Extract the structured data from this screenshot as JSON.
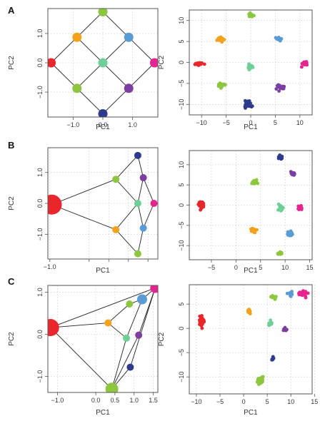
{
  "colors": {
    "red": "#e8262b",
    "orange": "#f4a21e",
    "lime": "#8dc63f",
    "teal": "#6fcf97",
    "blue": "#5b9bd5",
    "purple": "#7a3fa0",
    "navy": "#2e3a8c",
    "magenta": "#e5258f"
  },
  "chart_data": [
    {
      "panel": "A",
      "type": "scatter",
      "graph": true,
      "xlabel": "PC1",
      "ylabel": "PC2",
      "xlim": [
        -1.85,
        1.85
      ],
      "ylim": [
        -1.85,
        1.85
      ],
      "xticks": [
        -1.0,
        0.0,
        1.0
      ],
      "xtick_labels": [
        "−1.0",
        "0.0",
        "1.0"
      ],
      "yticks": [
        -1.0,
        0.0,
        1.0
      ],
      "ytick_labels": [
        "−1.0",
        "0.0",
        "1.0"
      ],
      "grid": true,
      "nodes": [
        {
          "id": "red",
          "x": -1.74,
          "y": 0.0,
          "r": 6.5
        },
        {
          "id": "orange",
          "x": -0.87,
          "y": 0.87,
          "r": 6.5
        },
        {
          "id": "lime",
          "x": -0.87,
          "y": -0.87,
          "r": 6.5
        },
        {
          "id": "lightgreen",
          "x": 0.0,
          "y": 1.74,
          "r": 6.5
        },
        {
          "id": "teal",
          "x": 0.0,
          "y": 0.0,
          "r": 6.5
        },
        {
          "id": "navy",
          "x": 0.0,
          "y": -1.74,
          "r": 6.5
        },
        {
          "id": "blue",
          "x": 0.87,
          "y": 0.87,
          "r": 6.5
        },
        {
          "id": "purple",
          "x": 0.87,
          "y": -0.87,
          "r": 6.5
        },
        {
          "id": "magenta",
          "x": 1.74,
          "y": 0.0,
          "r": 6.5
        }
      ],
      "edges": [
        [
          "red",
          "orange"
        ],
        [
          "red",
          "lime"
        ],
        [
          "orange",
          "lightgreen"
        ],
        [
          "orange",
          "teal"
        ],
        [
          "lime",
          "teal"
        ],
        [
          "lime",
          "navy"
        ],
        [
          "lightgreen",
          "blue"
        ],
        [
          "teal",
          "blue"
        ],
        [
          "teal",
          "purple"
        ],
        [
          "navy",
          "purple"
        ],
        [
          "blue",
          "magenta"
        ],
        [
          "purple",
          "magenta"
        ]
      ]
    },
    {
      "panel": "A",
      "type": "scatter",
      "xlabel": "PC1",
      "ylabel": "PC2",
      "xlim": [
        -12.5,
        12.5
      ],
      "ylim": [
        -12.5,
        12.5
      ],
      "xticks": [
        -10,
        -5,
        0,
        5,
        10
      ],
      "xtick_labels": [
        "−10",
        "−5",
        "0",
        "5",
        "10"
      ],
      "yticks": [
        -10,
        -5,
        0,
        5,
        10
      ],
      "ytick_labels": [
        "−10",
        "−5",
        "0",
        "5",
        "10"
      ],
      "grid": true,
      "clusters": [
        {
          "id": "red",
          "x": -10.5,
          "y": -0.3,
          "sx": 0.7,
          "sy": 0.35,
          "n": 22
        },
        {
          "id": "orange",
          "x": -6.0,
          "y": 5.5,
          "sx": 0.6,
          "sy": 0.45,
          "n": 22
        },
        {
          "id": "lime",
          "x": -6.0,
          "y": -5.5,
          "sx": 0.6,
          "sy": 0.6,
          "n": 22
        },
        {
          "id": "lightgreen",
          "x": 0.0,
          "y": 11.3,
          "sx": 0.6,
          "sy": 0.4,
          "n": 22
        },
        {
          "id": "teal",
          "x": 0.0,
          "y": -0.8,
          "sx": 0.5,
          "sy": 0.6,
          "n": 20
        },
        {
          "id": "navy",
          "x": -0.5,
          "y": -10.0,
          "sx": 0.55,
          "sy": 0.85,
          "n": 22
        },
        {
          "id": "blue",
          "x": 5.8,
          "y": 5.6,
          "sx": 0.6,
          "sy": 0.4,
          "n": 22
        },
        {
          "id": "purple",
          "x": 6.0,
          "y": -5.8,
          "sx": 0.75,
          "sy": 0.6,
          "n": 22
        },
        {
          "id": "magenta",
          "x": 11.0,
          "y": -0.3,
          "sx": 0.6,
          "sy": 0.5,
          "n": 22
        }
      ]
    },
    {
      "panel": "B",
      "type": "scatter",
      "graph": true,
      "xlabel": "PC1",
      "ylabel": "PC2",
      "xlim": [
        -1.05,
        1.75
      ],
      "ylim": [
        -1.8,
        1.8
      ],
      "xticks": [
        -1.0,
        0.0,
        0.5,
        1.0,
        1.5
      ],
      "xtick_labels": [
        "−1.0",
        "",
        "",
        "",
        ""
      ],
      "yticks": [
        -1.0,
        0.0,
        1.0
      ],
      "ytick_labels": [
        "−1.0",
        "0.0",
        "1.0"
      ],
      "grid": true,
      "nodes": [
        {
          "id": "red",
          "x": -0.95,
          "y": -0.04,
          "r": 14
        },
        {
          "id": "lime",
          "x": 0.68,
          "y": 0.78,
          "r": 5
        },
        {
          "id": "orange",
          "x": 0.68,
          "y": -0.85,
          "r": 5
        },
        {
          "id": "navy",
          "x": 1.24,
          "y": 1.55,
          "r": 5
        },
        {
          "id": "purple",
          "x": 1.38,
          "y": 0.83,
          "r": 5
        },
        {
          "id": "teal",
          "x": 1.24,
          "y": 0.0,
          "r": 5
        },
        {
          "id": "magenta",
          "x": 1.65,
          "y": 0.0,
          "r": 5
        },
        {
          "id": "blue",
          "x": 1.38,
          "y": -0.8,
          "r": 5
        },
        {
          "id": "lightgreen",
          "x": 1.24,
          "y": -1.63,
          "r": 5
        }
      ],
      "edges": [
        [
          "red",
          "lime"
        ],
        [
          "red",
          "orange"
        ],
        [
          "lime",
          "navy"
        ],
        [
          "lime",
          "teal"
        ],
        [
          "orange",
          "teal"
        ],
        [
          "orange",
          "lightgreen"
        ],
        [
          "navy",
          "purple"
        ],
        [
          "teal",
          "purple"
        ],
        [
          "teal",
          "blue"
        ],
        [
          "purple",
          "magenta"
        ],
        [
          "blue",
          "magenta"
        ],
        [
          "lightgreen",
          "blue"
        ]
      ]
    },
    {
      "panel": "B",
      "type": "scatter",
      "xlabel": "PC1",
      "ylabel": "",
      "xlim": [
        -9.5,
        15.5
      ],
      "ylim": [
        -13.5,
        13.5
      ],
      "xticks": [
        -5,
        0,
        5,
        10,
        15
      ],
      "xtick_labels": [
        "−5",
        "0",
        "5",
        "10",
        "15"
      ],
      "yticks": [
        -10,
        -5,
        0,
        5,
        10
      ],
      "ytick_labels": [
        "−10",
        "−5",
        "0",
        "5",
        "10"
      ],
      "grid": true,
      "clusters": [
        {
          "id": "red",
          "x": -7.0,
          "y": 0.0,
          "sx": 0.5,
          "sy": 0.7,
          "n": 38
        },
        {
          "id": "lime",
          "x": 3.8,
          "y": 5.8,
          "sx": 0.6,
          "sy": 0.5,
          "n": 18
        },
        {
          "id": "orange",
          "x": 3.5,
          "y": -6.2,
          "sx": 0.5,
          "sy": 0.5,
          "n": 16
        },
        {
          "id": "navy",
          "x": 9.0,
          "y": 11.8,
          "sx": 0.4,
          "sy": 0.6,
          "n": 16
        },
        {
          "id": "purple",
          "x": 11.5,
          "y": 7.8,
          "sx": 0.5,
          "sy": 0.4,
          "n": 16
        },
        {
          "id": "teal",
          "x": 9.0,
          "y": -0.8,
          "sx": 0.5,
          "sy": 0.8,
          "n": 18
        },
        {
          "id": "magenta",
          "x": 13.0,
          "y": -0.6,
          "sx": 0.4,
          "sy": 0.45,
          "n": 14
        },
        {
          "id": "blue",
          "x": 11.0,
          "y": -7.2,
          "sx": 0.5,
          "sy": 0.6,
          "n": 16
        },
        {
          "id": "lightgreen",
          "x": 9.0,
          "y": -12.0,
          "sx": 0.5,
          "sy": 0.4,
          "n": 14
        }
      ]
    },
    {
      "panel": "C",
      "type": "scatter",
      "graph": true,
      "xlabel": "PC1",
      "ylabel": "PC2",
      "xlim": [
        -1.25,
        1.62
      ],
      "ylim": [
        -1.38,
        1.16
      ],
      "xticks": [
        -1.0,
        0.0,
        0.5,
        1.0,
        1.5
      ],
      "xtick_labels": [
        "−1.0",
        "0.0",
        "0.5",
        "1.0",
        "1.5"
      ],
      "yticks": [
        -1.0,
        0.0,
        1.0
      ],
      "ytick_labels": [
        "−1.0",
        "0.0",
        "1.0"
      ],
      "grid": true,
      "nodes": [
        {
          "id": "red",
          "x": -1.18,
          "y": 0.16,
          "r": 12
        },
        {
          "id": "orange",
          "x": 0.32,
          "y": 0.27,
          "r": 5
        },
        {
          "id": "lime",
          "x": 0.88,
          "y": 0.72,
          "r": 5
        },
        {
          "id": "blue",
          "x": 1.21,
          "y": 0.83,
          "r": 7
        },
        {
          "id": "magenta",
          "x": 1.55,
          "y": 1.1,
          "r": 7
        },
        {
          "id": "teal",
          "x": 0.8,
          "y": -0.09,
          "r": 5
        },
        {
          "id": "purple",
          "x": 1.12,
          "y": -0.02,
          "r": 5
        },
        {
          "id": "navy",
          "x": 0.9,
          "y": -0.78,
          "r": 5
        },
        {
          "id": "lightgreen",
          "x": 0.42,
          "y": -1.3,
          "r": 9
        }
      ],
      "edges": [
        [
          "red",
          "orange"
        ],
        [
          "red",
          "magenta"
        ],
        [
          "red",
          "lightgreen"
        ],
        [
          "orange",
          "lime"
        ],
        [
          "orange",
          "teal"
        ],
        [
          "lime",
          "blue"
        ],
        [
          "blue",
          "magenta"
        ],
        [
          "teal",
          "blue"
        ],
        [
          "teal",
          "lightgreen"
        ],
        [
          "purple",
          "magenta"
        ],
        [
          "navy",
          "magenta"
        ],
        [
          "navy",
          "lightgreen"
        ],
        [
          "lightgreen",
          "purple"
        ]
      ]
    },
    {
      "panel": "C",
      "type": "scatter",
      "xlabel": "PC1",
      "ylabel": "PC2",
      "xlim": [
        -11.5,
        14.5
      ],
      "ylim": [
        -13.5,
        9.0
      ],
      "xticks": [
        -10,
        -5,
        0,
        5,
        10,
        15
      ],
      "xtick_labels": [
        "−10",
        "−5",
        "0",
        "5",
        "10",
        "15"
      ],
      "yticks": [
        -10,
        -5,
        0,
        5
      ],
      "ytick_labels": [
        "−10",
        "−5",
        "0",
        "5"
      ],
      "grid": true,
      "clusters": [
        {
          "id": "red",
          "x": -9.0,
          "y": 1.5,
          "sx": 0.5,
          "sy": 0.8,
          "n": 40
        },
        {
          "id": "orange",
          "x": 1.0,
          "y": 3.5,
          "sx": 0.3,
          "sy": 0.5,
          "n": 12
        },
        {
          "id": "lime",
          "x": 6.5,
          "y": 6.5,
          "sx": 0.6,
          "sy": 0.3,
          "n": 16
        },
        {
          "id": "blue",
          "x": 10.0,
          "y": 7.0,
          "sx": 0.4,
          "sy": 0.5,
          "n": 18
        },
        {
          "id": "magenta",
          "x": 12.5,
          "y": 7.2,
          "sx": 0.8,
          "sy": 0.5,
          "n": 30
        },
        {
          "id": "teal",
          "x": 5.7,
          "y": 1.0,
          "sx": 0.4,
          "sy": 0.5,
          "n": 10
        },
        {
          "id": "purple",
          "x": 8.8,
          "y": -0.3,
          "sx": 0.4,
          "sy": 0.4,
          "n": 12
        },
        {
          "id": "navy",
          "x": 6.2,
          "y": -6.2,
          "sx": 0.25,
          "sy": 0.35,
          "n": 8
        },
        {
          "id": "lightgreen",
          "x": 3.5,
          "y": -10.8,
          "sx": 0.6,
          "sy": 0.6,
          "n": 28
        }
      ]
    }
  ]
}
